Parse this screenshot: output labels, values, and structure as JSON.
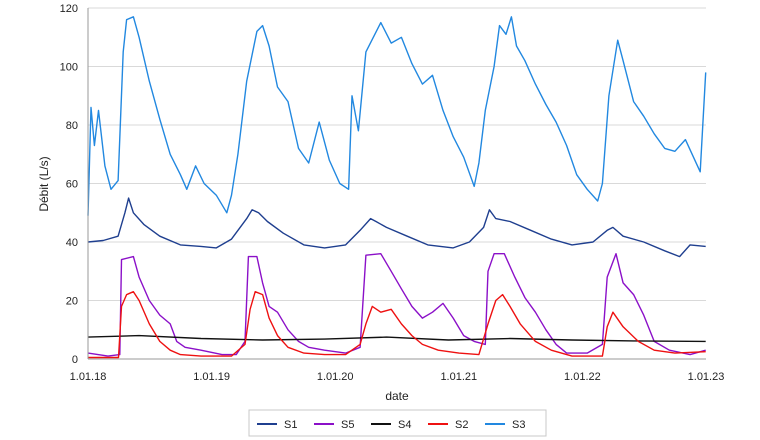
{
  "chart_data": {
    "type": "line",
    "xlabel": "date",
    "ylabel": "Débit (L/s)",
    "ylim": [
      0,
      120
    ],
    "yticks": [
      0,
      20,
      40,
      60,
      80,
      100,
      120
    ],
    "xlim": [
      "2018-01-01",
      "2023-01-01"
    ],
    "xticks": [
      "1.01.18",
      "1.01.19",
      "1.01.20",
      "1.01.21",
      "1.01.22",
      "1.01.23"
    ],
    "grid": "horizontal",
    "legend_position": "bottom",
    "series": [
      {
        "name": "S1",
        "color": "#1f3f8f",
        "points": [
          [
            "2018-01-01",
            40
          ],
          [
            "2018-02-15",
            40.5
          ],
          [
            "2018-03-31",
            42
          ],
          [
            "2018-04-20",
            50
          ],
          [
            "2018-05-01",
            55
          ],
          [
            "2018-05-15",
            50
          ],
          [
            "2018-06-15",
            46
          ],
          [
            "2018-08-01",
            42
          ],
          [
            "2018-10-01",
            39
          ],
          [
            "2018-12-01",
            38.5
          ],
          [
            "2019-01-15",
            38
          ],
          [
            "2019-03-01",
            41
          ],
          [
            "2019-04-15",
            48
          ],
          [
            "2019-05-01",
            51
          ],
          [
            "2019-05-20",
            50
          ],
          [
            "2019-06-15",
            47
          ],
          [
            "2019-08-01",
            43
          ],
          [
            "2019-10-01",
            39
          ],
          [
            "2019-12-01",
            38
          ],
          [
            "2020-02-01",
            39
          ],
          [
            "2020-03-15",
            44
          ],
          [
            "2020-04-15",
            48
          ],
          [
            "2020-05-01",
            47
          ],
          [
            "2020-06-01",
            45
          ],
          [
            "2020-08-01",
            42
          ],
          [
            "2020-10-01",
            39
          ],
          [
            "2020-12-15",
            38
          ],
          [
            "2021-02-01",
            40
          ],
          [
            "2021-03-15",
            45
          ],
          [
            "2021-04-01",
            51
          ],
          [
            "2021-04-20",
            48
          ],
          [
            "2021-06-01",
            47
          ],
          [
            "2021-08-01",
            44
          ],
          [
            "2021-10-01",
            41
          ],
          [
            "2021-12-01",
            39
          ],
          [
            "2022-02-01",
            40
          ],
          [
            "2022-03-15",
            44
          ],
          [
            "2022-04-01",
            45
          ],
          [
            "2022-05-01",
            42
          ],
          [
            "2022-07-01",
            40
          ],
          [
            "2022-09-01",
            37
          ],
          [
            "2022-10-15",
            35
          ],
          [
            "2022-11-15",
            39
          ],
          [
            "2022-12-31",
            38.5
          ]
        ]
      },
      {
        "name": "S5",
        "color": "#8b10c8",
        "points": [
          [
            "2018-01-01",
            2
          ],
          [
            "2018-03-01",
            1
          ],
          [
            "2018-04-05",
            1.5
          ],
          [
            "2018-04-10",
            34
          ],
          [
            "2018-05-15",
            35
          ],
          [
            "2018-06-01",
            28
          ],
          [
            "2018-07-01",
            20
          ],
          [
            "2018-08-01",
            15
          ],
          [
            "2018-09-01",
            12
          ],
          [
            "2018-09-20",
            6
          ],
          [
            "2018-10-15",
            4
          ],
          [
            "2018-12-01",
            3
          ],
          [
            "2019-02-01",
            1.5
          ],
          [
            "2019-03-15",
            1.5
          ],
          [
            "2019-04-10",
            6
          ],
          [
            "2019-04-20",
            35
          ],
          [
            "2019-05-15",
            35
          ],
          [
            "2019-06-01",
            26
          ],
          [
            "2019-06-20",
            18
          ],
          [
            "2019-07-15",
            16
          ],
          [
            "2019-08-15",
            10
          ],
          [
            "2019-09-15",
            6
          ],
          [
            "2019-10-15",
            4
          ],
          [
            "2019-12-01",
            3
          ],
          [
            "2020-02-01",
            2
          ],
          [
            "2020-03-15",
            4
          ],
          [
            "2020-04-01",
            35.5
          ],
          [
            "2020-05-15",
            36
          ],
          [
            "2020-06-15",
            30
          ],
          [
            "2020-07-15",
            24
          ],
          [
            "2020-08-15",
            18
          ],
          [
            "2020-09-15",
            14
          ],
          [
            "2020-10-15",
            16
          ],
          [
            "2020-11-15",
            19
          ],
          [
            "2020-12-15",
            14
          ],
          [
            "2021-01-15",
            8
          ],
          [
            "2021-02-15",
            6
          ],
          [
            "2021-03-20",
            5
          ],
          [
            "2021-03-28",
            30
          ],
          [
            "2021-04-15",
            36
          ],
          [
            "2021-05-15",
            36
          ],
          [
            "2021-06-15",
            28
          ],
          [
            "2021-07-15",
            21
          ],
          [
            "2021-08-15",
            16
          ],
          [
            "2021-09-15",
            10
          ],
          [
            "2021-10-15",
            5
          ],
          [
            "2021-11-15",
            2
          ],
          [
            "2022-01-15",
            2
          ],
          [
            "2022-03-01",
            5
          ],
          [
            "2022-03-15",
            28
          ],
          [
            "2022-04-10",
            36
          ],
          [
            "2022-05-01",
            26
          ],
          [
            "2022-06-01",
            22
          ],
          [
            "2022-07-01",
            15
          ],
          [
            "2022-08-01",
            6
          ],
          [
            "2022-09-15",
            3
          ],
          [
            "2022-11-15",
            1.5
          ],
          [
            "2022-12-31",
            3
          ]
        ]
      },
      {
        "name": "S4",
        "color": "#111111",
        "points": [
          [
            "2018-01-01",
            7.5
          ],
          [
            "2018-06-01",
            8
          ],
          [
            "2018-12-01",
            7
          ],
          [
            "2019-06-01",
            6.5
          ],
          [
            "2019-12-01",
            6.8
          ],
          [
            "2020-06-01",
            7.5
          ],
          [
            "2020-12-01",
            6.5
          ],
          [
            "2021-06-01",
            7
          ],
          [
            "2021-12-01",
            6.5
          ],
          [
            "2022-06-01",
            6.2
          ],
          [
            "2022-12-31",
            6
          ]
        ]
      },
      {
        "name": "S2",
        "color": "#ee1111",
        "points": [
          [
            "2018-01-01",
            0.5
          ],
          [
            "2018-04-01",
            0.5
          ],
          [
            "2018-04-10",
            18
          ],
          [
            "2018-04-25",
            22
          ],
          [
            "2018-05-15",
            23
          ],
          [
            "2018-06-01",
            20
          ],
          [
            "2018-07-01",
            12
          ],
          [
            "2018-08-01",
            6
          ],
          [
            "2018-09-01",
            3
          ],
          [
            "2018-10-01",
            1.5
          ],
          [
            "2018-12-01",
            1
          ],
          [
            "2019-03-01",
            1
          ],
          [
            "2019-04-10",
            5
          ],
          [
            "2019-04-25",
            17
          ],
          [
            "2019-05-10",
            23
          ],
          [
            "2019-06-01",
            22
          ],
          [
            "2019-06-20",
            14
          ],
          [
            "2019-07-15",
            8
          ],
          [
            "2019-08-15",
            4
          ],
          [
            "2019-10-01",
            2
          ],
          [
            "2019-12-01",
            1.5
          ],
          [
            "2020-02-01",
            1.5
          ],
          [
            "2020-03-15",
            5
          ],
          [
            "2020-04-01",
            12
          ],
          [
            "2020-04-20",
            18
          ],
          [
            "2020-05-15",
            16
          ],
          [
            "2020-06-15",
            17
          ],
          [
            "2020-07-15",
            12
          ],
          [
            "2020-08-15",
            8
          ],
          [
            "2020-09-15",
            5
          ],
          [
            "2020-11-01",
            3
          ],
          [
            "2021-01-01",
            2
          ],
          [
            "2021-03-01",
            1.5
          ],
          [
            "2021-03-28",
            12
          ],
          [
            "2021-04-20",
            20
          ],
          [
            "2021-05-10",
            22
          ],
          [
            "2021-06-01",
            18
          ],
          [
            "2021-07-01",
            12
          ],
          [
            "2021-08-15",
            6
          ],
          [
            "2021-10-01",
            3
          ],
          [
            "2021-12-01",
            1
          ],
          [
            "2022-03-01",
            1
          ],
          [
            "2022-03-15",
            11
          ],
          [
            "2022-04-01",
            16
          ],
          [
            "2022-05-01",
            11
          ],
          [
            "2022-06-15",
            6
          ],
          [
            "2022-08-01",
            3
          ],
          [
            "2022-10-01",
            2
          ],
          [
            "2022-12-31",
            2.5
          ]
        ]
      },
      {
        "name": "S3",
        "color": "#2288e0",
        "points": [
          [
            "2018-01-01",
            49
          ],
          [
            "2018-01-10",
            86
          ],
          [
            "2018-01-20",
            73
          ],
          [
            "2018-02-01",
            85
          ],
          [
            "2018-02-20",
            66
          ],
          [
            "2018-03-10",
            58
          ],
          [
            "2018-03-31",
            61
          ],
          [
            "2018-04-15",
            105
          ],
          [
            "2018-04-25",
            116
          ],
          [
            "2018-05-15",
            117
          ],
          [
            "2018-06-01",
            110
          ],
          [
            "2018-07-01",
            95
          ],
          [
            "2018-08-01",
            82
          ],
          [
            "2018-09-01",
            70
          ],
          [
            "2018-10-01",
            63
          ],
          [
            "2018-10-20",
            58
          ],
          [
            "2018-11-15",
            66
          ],
          [
            "2018-12-10",
            60
          ],
          [
            "2019-01-15",
            56
          ],
          [
            "2019-02-15",
            50
          ],
          [
            "2019-03-01",
            56
          ],
          [
            "2019-03-20",
            70
          ],
          [
            "2019-04-15",
            95
          ],
          [
            "2019-05-15",
            112
          ],
          [
            "2019-06-01",
            114
          ],
          [
            "2019-06-20",
            107
          ],
          [
            "2019-07-15",
            93
          ],
          [
            "2019-08-15",
            88
          ],
          [
            "2019-09-15",
            72
          ],
          [
            "2019-10-15",
            67
          ],
          [
            "2019-11-15",
            81
          ],
          [
            "2019-12-15",
            68
          ],
          [
            "2020-01-15",
            60
          ],
          [
            "2020-02-10",
            58
          ],
          [
            "2020-02-20",
            90
          ],
          [
            "2020-03-10",
            78
          ],
          [
            "2020-04-01",
            105
          ],
          [
            "2020-05-15",
            115
          ],
          [
            "2020-06-15",
            108
          ],
          [
            "2020-07-15",
            110
          ],
          [
            "2020-08-15",
            101
          ],
          [
            "2020-09-15",
            94
          ],
          [
            "2020-10-15",
            97
          ],
          [
            "2020-11-15",
            85
          ],
          [
            "2020-12-15",
            76
          ],
          [
            "2021-01-15",
            69
          ],
          [
            "2021-02-15",
            59
          ],
          [
            "2021-03-01",
            67
          ],
          [
            "2021-03-20",
            85
          ],
          [
            "2021-04-15",
            100
          ],
          [
            "2021-05-01",
            114
          ],
          [
            "2021-05-20",
            111
          ],
          [
            "2021-06-05",
            117
          ],
          [
            "2021-06-20",
            107
          ],
          [
            "2021-07-15",
            102
          ],
          [
            "2021-08-15",
            94
          ],
          [
            "2021-09-15",
            87
          ],
          [
            "2021-10-15",
            81
          ],
          [
            "2021-11-15",
            73
          ],
          [
            "2021-12-15",
            63
          ],
          [
            "2022-01-15",
            58
          ],
          [
            "2022-02-15",
            54
          ],
          [
            "2022-03-01",
            60
          ],
          [
            "2022-03-20",
            90
          ],
          [
            "2022-04-15",
            109
          ],
          [
            "2022-05-01",
            102
          ],
          [
            "2022-06-01",
            88
          ],
          [
            "2022-07-01",
            83
          ],
          [
            "2022-08-01",
            77
          ],
          [
            "2022-09-01",
            72
          ],
          [
            "2022-10-01",
            71
          ],
          [
            "2022-11-01",
            75
          ],
          [
            "2022-12-15",
            64
          ],
          [
            "2022-12-31",
            98
          ]
        ]
      }
    ]
  }
}
